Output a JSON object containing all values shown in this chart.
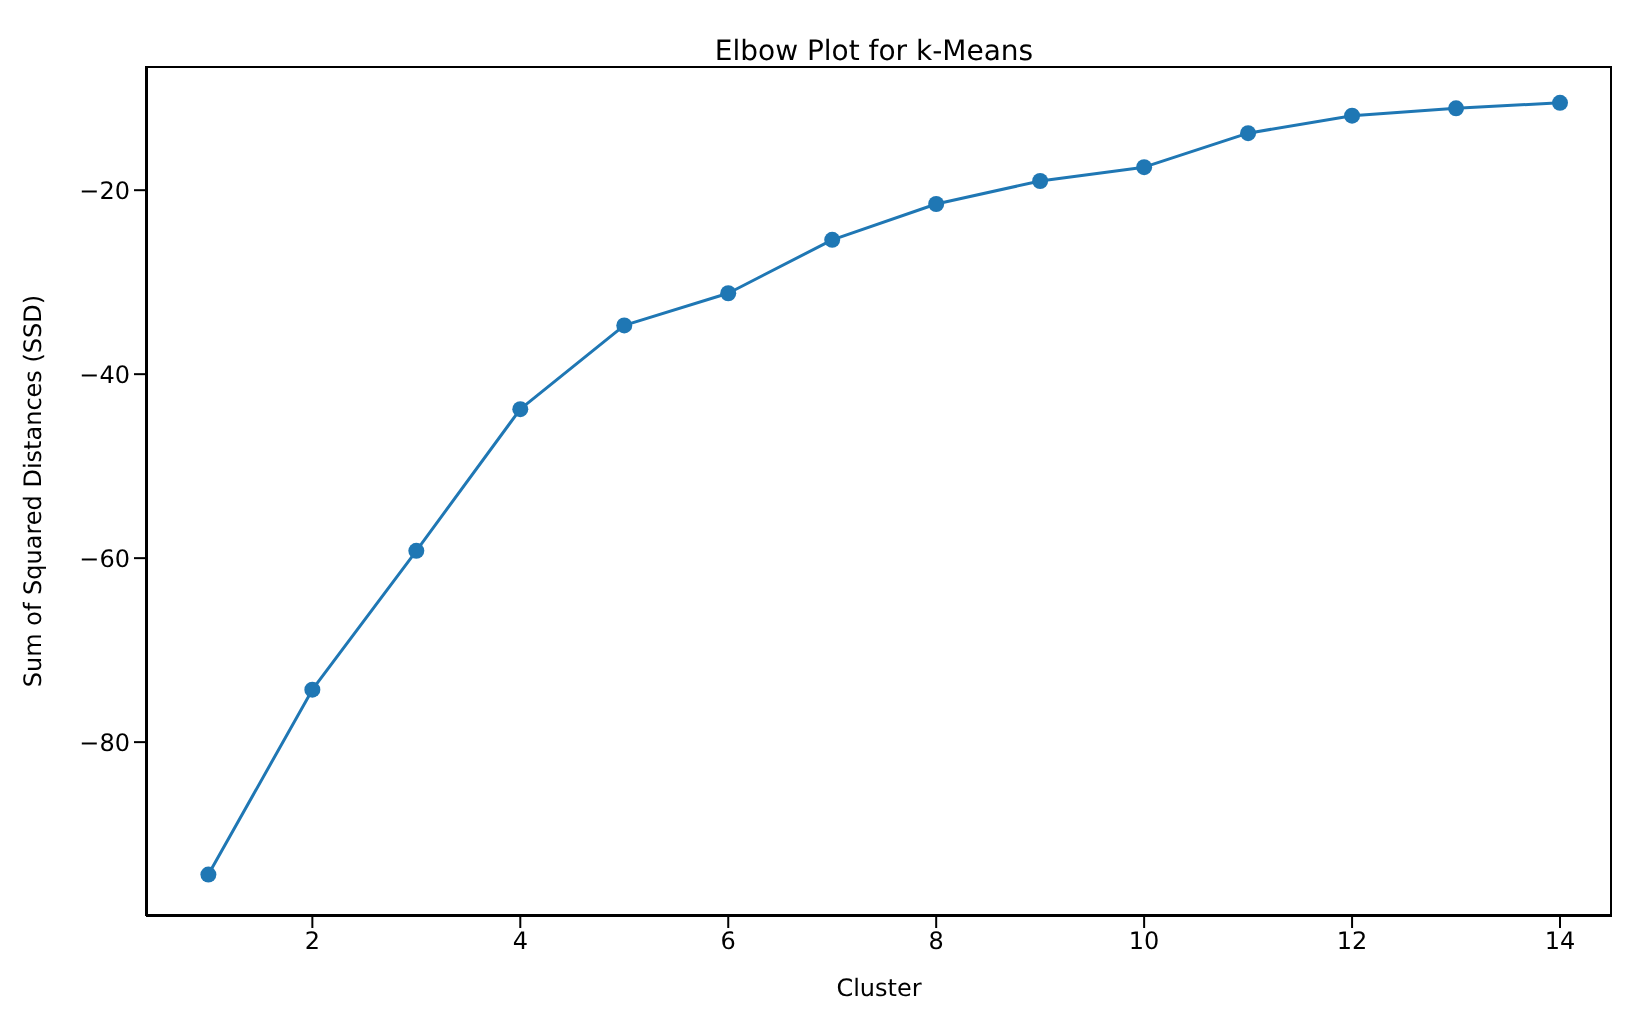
{
  "chart_data": {
    "type": "line",
    "title": "Elbow Plot for k-Means",
    "xlabel": "Cluster",
    "ylabel": "Sum of Squared Distances (SSD)",
    "x": [
      1,
      2,
      3,
      4,
      5,
      6,
      7,
      8,
      9,
      10,
      11,
      12,
      13,
      14
    ],
    "series": [
      {
        "color": "#1f77b4",
        "values": [
          -94.4,
          -74.3,
          -59.2,
          -43.8,
          -34.7,
          -31.2,
          -25.4,
          -21.5,
          -19.0,
          -17.5,
          -13.8,
          -11.9,
          -11.1,
          -10.5
        ]
      }
    ],
    "xlim": [
      0.4,
      14.5
    ],
    "xticks": [
      2,
      4,
      6,
      8,
      10,
      12,
      14
    ],
    "ylim": [
      -98.9,
      -6.5
    ],
    "yticks": [
      {
        "value": -80,
        "label": "−80"
      },
      {
        "value": -60,
        "label": "−60"
      },
      {
        "value": -40,
        "label": "−40"
      },
      {
        "value": -20,
        "label": "−20"
      }
    ],
    "marker": "circle",
    "line_style": "solid"
  }
}
